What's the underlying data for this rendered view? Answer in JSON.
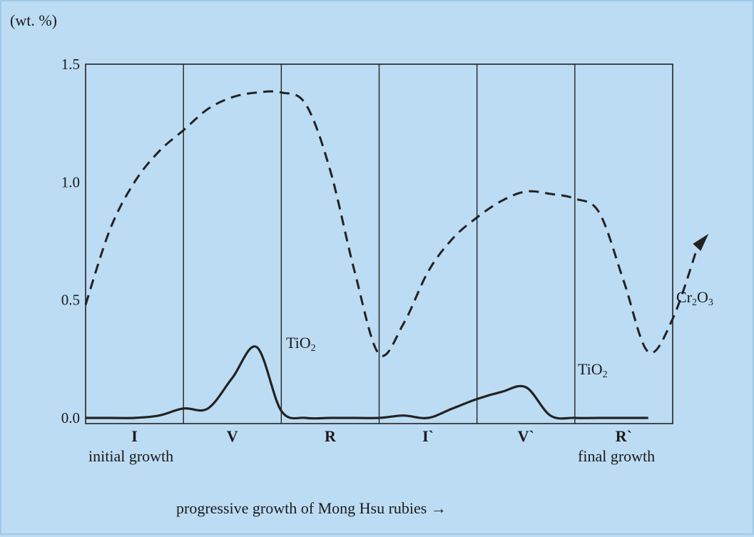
{
  "chart_data": {
    "type": "line",
    "ylabel": "(wt. %)",
    "xlabel": "progressive growth of Mong Hsu rubies →",
    "ylim": [
      0,
      1.5
    ],
    "yticks": [
      "1.5",
      "1.0",
      "0.5",
      "0.0"
    ],
    "segments": [
      "I",
      "V",
      "R",
      "I`",
      "V`",
      "R`"
    ],
    "segment_notes": {
      "first": "initial growth",
      "last": "final growth"
    },
    "x": [
      0,
      0.25,
      0.5,
      0.75,
      1,
      1.25,
      1.5,
      1.75,
      2,
      2.25,
      2.5,
      2.75,
      3,
      3.25,
      3.5,
      3.75,
      4,
      4.25,
      4.5,
      4.75,
      5,
      5.25,
      5.5,
      5.75,
      6,
      6.25
    ],
    "series": [
      {
        "name": "Cr2O3",
        "label": {
          "main": "Cr",
          "sub1": "2",
          "mid": "O",
          "sub2": "3"
        },
        "style": "dashed",
        "values": [
          0.48,
          0.8,
          1.0,
          1.13,
          1.22,
          1.31,
          1.36,
          1.38,
          1.38,
          1.33,
          1.05,
          0.62,
          0.27,
          0.4,
          0.62,
          0.76,
          0.85,
          0.92,
          0.96,
          0.95,
          0.93,
          0.87,
          0.58,
          0.28,
          0.42,
          0.72
        ]
      },
      {
        "name": "TiO2",
        "label": {
          "main": "TiO",
          "sub1": "2"
        },
        "style": "solid",
        "values": [
          0.0,
          0.0,
          0.0,
          0.01,
          0.04,
          0.04,
          0.17,
          0.3,
          0.03,
          0.0,
          0.0,
          0.0,
          0.0,
          0.01,
          0.0,
          0.04,
          0.08,
          0.11,
          0.13,
          0.01,
          0.0,
          0.0,
          0.0,
          0.0,
          null,
          null
        ]
      }
    ],
    "grid": false
  }
}
